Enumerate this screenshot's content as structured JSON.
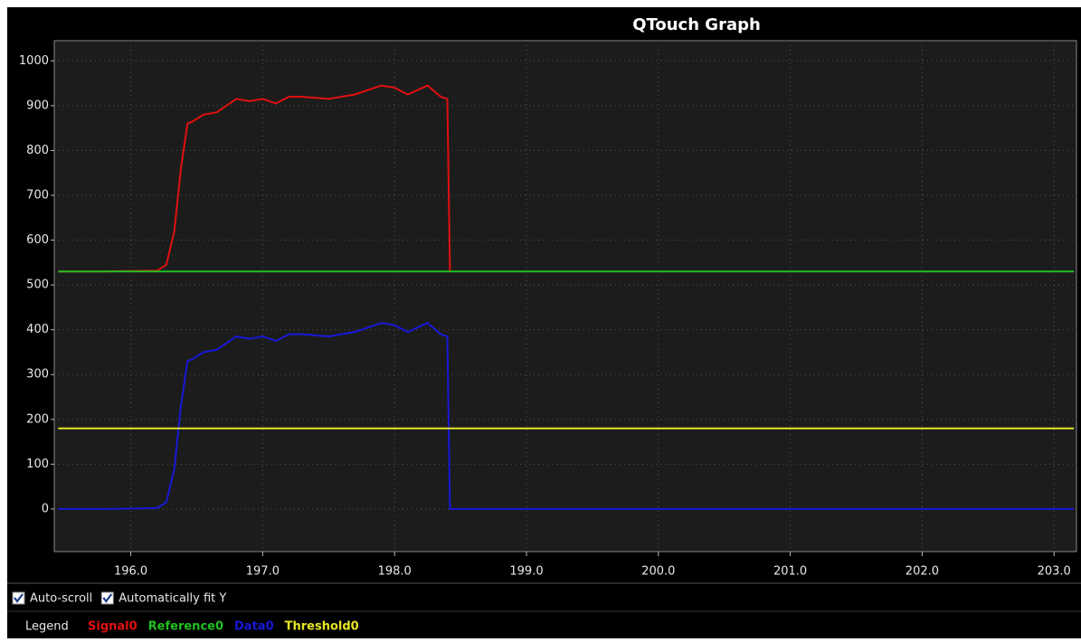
{
  "chart_data": {
    "type": "line",
    "title": "QTouch Graph",
    "x": [
      195.45,
      195.8,
      196.2,
      196.27,
      196.33,
      196.38,
      196.43,
      196.47,
      196.55,
      196.65,
      196.75,
      196.8,
      196.9,
      197.0,
      197.1,
      197.2,
      197.3,
      197.5,
      197.7,
      197.8,
      197.9,
      198.0,
      198.1,
      198.25,
      198.35,
      198.4,
      198.42,
      199.0,
      203.15
    ],
    "series": [
      {
        "name": "Signal0",
        "color": "#e01010",
        "values": [
          530,
          530,
          532,
          545,
          620,
          760,
          860,
          865,
          880,
          885,
          905,
          915,
          910,
          915,
          905,
          920,
          920,
          915,
          925,
          935,
          945,
          940,
          925,
          945,
          920,
          915,
          530,
          null,
          null
        ]
      },
      {
        "name": "Reference0",
        "color": "#22c022",
        "values": [
          530,
          530,
          530,
          530,
          530,
          530,
          530,
          530,
          530,
          530,
          530,
          530,
          530,
          530,
          530,
          530,
          530,
          530,
          530,
          530,
          530,
          530,
          530,
          530,
          530,
          530,
          530,
          530,
          530
        ]
      },
      {
        "name": "Data0",
        "color": "#1818d8",
        "values": [
          0,
          0,
          2,
          15,
          90,
          230,
          330,
          335,
          350,
          355,
          375,
          385,
          380,
          385,
          375,
          390,
          390,
          385,
          395,
          405,
          415,
          410,
          395,
          415,
          390,
          385,
          0,
          0,
          0
        ]
      },
      {
        "name": "Threshold0",
        "color": "#e6e626",
        "values": [
          180,
          180,
          180,
          180,
          180,
          180,
          180,
          180,
          180,
          180,
          180,
          180,
          180,
          180,
          180,
          180,
          180,
          180,
          180,
          180,
          180,
          180,
          180,
          180,
          180,
          180,
          180,
          180,
          180
        ]
      }
    ],
    "xlim": [
      195.42,
      203.17
    ],
    "xticks": [
      {
        "value": 196,
        "label": "196.0"
      },
      {
        "value": 197,
        "label": "197.0"
      },
      {
        "value": 198,
        "label": "198.0"
      },
      {
        "value": 199,
        "label": "199.0"
      },
      {
        "value": 200,
        "label": "200.0"
      },
      {
        "value": 201,
        "label": "201.0"
      },
      {
        "value": 202,
        "label": "202.0"
      },
      {
        "value": 203,
        "label": "203.0"
      }
    ],
    "ylim": [
      -95,
      1045
    ],
    "yticks": [
      0,
      100,
      200,
      300,
      400,
      500,
      600,
      700,
      800,
      900,
      1000
    ],
    "grid": true
  },
  "controls": [
    {
      "label": "Auto-scroll",
      "checked": true
    },
    {
      "label": "Automatically fit Y",
      "checked": true
    }
  ],
  "legend_label": "Legend"
}
